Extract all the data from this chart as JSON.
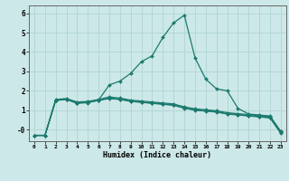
{
  "xlabel": "Humidex (Indice chaleur)",
  "background_color": "#cde8e8",
  "grid_color": "#b0d4d4",
  "line_color": "#1a7a6e",
  "ylim": [
    -0.6,
    6.4
  ],
  "xlim": [
    -0.5,
    23.5
  ],
  "series": [
    [
      -0.3,
      -0.3,
      1.5,
      1.55,
      1.35,
      1.4,
      1.5,
      1.6,
      1.55,
      1.45,
      1.4,
      1.35,
      1.3,
      1.25,
      1.1,
      1.0,
      0.95,
      0.9,
      0.8,
      0.75,
      0.7,
      0.65,
      0.6,
      -0.2
    ],
    [
      -0.3,
      -0.3,
      1.52,
      1.57,
      1.38,
      1.42,
      1.52,
      1.62,
      1.57,
      1.47,
      1.42,
      1.37,
      1.32,
      1.27,
      1.12,
      1.02,
      0.97,
      0.92,
      0.82,
      0.77,
      0.72,
      0.67,
      0.62,
      -0.15
    ],
    [
      -0.3,
      -0.3,
      1.55,
      1.6,
      1.42,
      1.45,
      1.55,
      1.68,
      1.62,
      1.52,
      1.47,
      1.42,
      1.37,
      1.32,
      1.17,
      1.07,
      1.02,
      0.97,
      0.87,
      0.82,
      0.77,
      0.72,
      0.67,
      -0.1
    ],
    [
      -0.3,
      -0.3,
      1.52,
      1.57,
      1.38,
      1.38,
      1.52,
      2.3,
      2.5,
      2.9,
      3.5,
      3.8,
      4.75,
      5.5,
      5.9,
      3.7,
      2.6,
      2.1,
      2.0,
      1.1,
      0.8,
      0.75,
      0.7,
      -0.1
    ]
  ],
  "yticks": [
    0,
    1,
    2,
    3,
    4,
    5,
    6
  ],
  "ytick_labels": [
    "-0",
    "1",
    "2",
    "3",
    "4",
    "5",
    "6"
  ]
}
